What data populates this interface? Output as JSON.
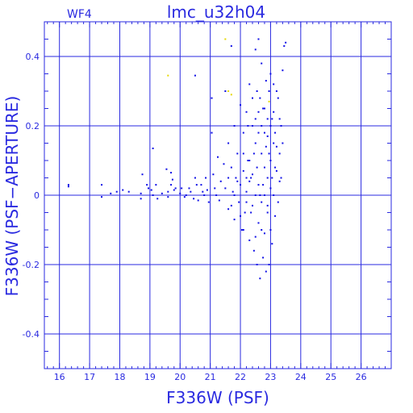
{
  "chart_data": {
    "type": "scatter",
    "title": "lmc_u32h04",
    "tag": "WF4",
    "xlabel": "F336W (PSF)",
    "ylabel": "F336W (PSF−APERTURE)",
    "xlim": [
      15.5,
      27.0
    ],
    "ylim": [
      -0.5,
      0.5
    ],
    "x_ticks": [
      16,
      17,
      18,
      19,
      20,
      21,
      22,
      23,
      24,
      25,
      26
    ],
    "y_ticks": [
      0.4,
      0.2,
      0,
      -0.2,
      -0.4
    ],
    "y_tick_labels": [
      "0.4",
      "0.2",
      "0",
      "-0.2",
      "-0.4"
    ],
    "grid": true,
    "colors": {
      "axes": "#2a2ae0",
      "points": "#1010e6",
      "highlight": "#e6d800"
    },
    "series": [
      {
        "color_key": "points",
        "points": [
          [
            16.3,
            0.03
          ],
          [
            16.3,
            0.025
          ],
          [
            17.4,
            0.03
          ],
          [
            17.4,
            -0.005
          ],
          [
            17.7,
            0.005
          ],
          [
            17.9,
            0.01
          ],
          [
            18.1,
            0.015
          ],
          [
            18.3,
            0.01
          ],
          [
            18.7,
            0.005
          ],
          [
            18.7,
            -0.01
          ],
          [
            18.75,
            0.06
          ],
          [
            18.9,
            0.03
          ],
          [
            18.95,
            0.02
          ],
          [
            19.05,
            0.015
          ],
          [
            19.1,
            0.0
          ],
          [
            19.1,
            0.135
          ],
          [
            19.2,
            0.03
          ],
          [
            19.25,
            -0.01
          ],
          [
            19.4,
            0.005
          ],
          [
            19.55,
            0.075
          ],
          [
            19.6,
            0.01
          ],
          [
            19.6,
            -0.005
          ],
          [
            19.7,
            0.065
          ],
          [
            19.7,
            0.03
          ],
          [
            19.75,
            0.045
          ],
          [
            19.8,
            0.015
          ],
          [
            19.85,
            0.02
          ],
          [
            20.0,
            0.005
          ],
          [
            20.05,
            0.02
          ],
          [
            20.15,
            -0.005
          ],
          [
            20.2,
            0.0
          ],
          [
            20.3,
            0.02
          ],
          [
            20.35,
            0.01
          ],
          [
            20.45,
            -0.01
          ],
          [
            20.5,
            0.345
          ],
          [
            20.5,
            0.05
          ],
          [
            20.55,
            0.03
          ],
          [
            20.6,
            -0.015
          ],
          [
            20.7,
            0.03
          ],
          [
            20.75,
            0.01
          ],
          [
            20.8,
            0.0
          ],
          [
            20.85,
            0.05
          ],
          [
            20.9,
            0.015
          ],
          [
            20.95,
            -0.02
          ],
          [
            21.05,
            0.28
          ],
          [
            21.05,
            0.18
          ],
          [
            21.1,
            0.06
          ],
          [
            21.15,
            0.02
          ],
          [
            21.2,
            0.0
          ],
          [
            21.25,
            0.11
          ],
          [
            21.3,
            -0.015
          ],
          [
            21.35,
            0.04
          ],
          [
            21.45,
            0.09
          ],
          [
            21.5,
            0.3
          ],
          [
            21.5,
            0.02
          ],
          [
            21.6,
            0.15
          ],
          [
            21.6,
            -0.04
          ],
          [
            21.7,
            0.43
          ],
          [
            21.7,
            0.08
          ],
          [
            21.75,
            0.01
          ],
          [
            21.8,
            0.2
          ],
          [
            21.8,
            -0.07
          ],
          [
            21.85,
            0.05
          ],
          [
            21.9,
            0.12
          ],
          [
            21.95,
            -0.02
          ],
          [
            22.0,
            0.26
          ],
          [
            22.0,
            0.03
          ],
          [
            22.05,
            -0.1
          ],
          [
            22.1,
            0.18
          ],
          [
            22.1,
            0.07
          ],
          [
            22.15,
            -0.05
          ],
          [
            22.2,
            0.24
          ],
          [
            22.2,
            0.01
          ],
          [
            22.25,
            0.1
          ],
          [
            22.3,
            -0.13
          ],
          [
            22.3,
            0.32
          ],
          [
            22.35,
            0.05
          ],
          [
            22.4,
            -0.03
          ],
          [
            22.4,
            0.2
          ],
          [
            22.45,
            -0.16
          ],
          [
            22.5,
            0.15
          ],
          [
            22.5,
            0.42
          ],
          [
            22.55,
            -0.2
          ],
          [
            22.55,
            0.08
          ],
          [
            22.6,
            0.45
          ],
          [
            22.6,
            -0.08
          ],
          [
            22.65,
            0.28
          ],
          [
            22.65,
            -0.24
          ],
          [
            22.7,
            0.12
          ],
          [
            22.7,
            0.38
          ],
          [
            22.75,
            -0.18
          ],
          [
            22.75,
            0.03
          ],
          [
            22.8,
            0.25
          ],
          [
            22.8,
            -0.11
          ],
          [
            22.85,
            0.33
          ],
          [
            22.85,
            -0.22
          ],
          [
            22.9,
            0.17
          ],
          [
            22.9,
            -0.05
          ],
          [
            22.95,
            0.3
          ],
          [
            22.95,
            -0.2
          ],
          [
            23.0,
            0.1
          ],
          [
            23.0,
            0.35
          ],
          [
            23.05,
            -0.14
          ],
          [
            23.05,
            0.22
          ],
          [
            23.1,
            0.0
          ],
          [
            23.1,
            0.32
          ],
          [
            23.15,
            -0.06
          ],
          [
            23.15,
            0.18
          ],
          [
            23.2,
            0.3
          ],
          [
            23.2,
            0.07
          ],
          [
            23.25,
            0.28
          ],
          [
            23.25,
            -0.02
          ],
          [
            23.3,
            0.22
          ],
          [
            23.3,
            0.12
          ],
          [
            23.35,
            0.2
          ],
          [
            23.35,
            0.05
          ],
          [
            23.4,
            0.15
          ],
          [
            23.45,
            0.43
          ],
          [
            23.5,
            0.44
          ],
          [
            23.4,
            0.36
          ],
          [
            22.1,
            0.12
          ],
          [
            22.2,
            0.05
          ],
          [
            22.25,
            0.2
          ],
          [
            22.3,
            0.1
          ],
          [
            22.35,
            -0.05
          ],
          [
            22.45,
            0.12
          ],
          [
            22.5,
            -0.12
          ],
          [
            22.55,
            0.3
          ],
          [
            22.6,
            0.18
          ],
          [
            22.65,
            0.0
          ],
          [
            22.7,
            -0.1
          ],
          [
            22.75,
            0.25
          ],
          [
            22.8,
            0.08
          ],
          [
            22.85,
            0.14
          ],
          [
            22.9,
            0.05
          ],
          [
            22.95,
            0.12
          ],
          [
            23.0,
            -0.1
          ],
          [
            23.05,
            0.05
          ],
          [
            23.1,
            0.15
          ],
          [
            23.15,
            0.08
          ],
          [
            21.6,
            0.05
          ],
          [
            21.7,
            -0.03
          ],
          [
            21.8,
            0.0
          ],
          [
            21.9,
            0.04
          ],
          [
            22.0,
            -0.06
          ],
          [
            22.1,
            -0.1
          ],
          [
            22.2,
            -0.02
          ],
          [
            22.3,
            0.04
          ],
          [
            22.4,
            0.06
          ],
          [
            22.5,
            0.0
          ],
          [
            22.6,
            0.03
          ],
          [
            22.7,
            -0.02
          ],
          [
            22.8,
            0.0
          ],
          [
            22.9,
            -0.03
          ],
          [
            23.0,
            0.02
          ],
          [
            22.4,
            0.28
          ],
          [
            22.5,
            0.22
          ],
          [
            22.6,
            0.24
          ],
          [
            22.7,
            0.2
          ],
          [
            22.8,
            0.18
          ],
          [
            22.9,
            0.22
          ],
          [
            23.0,
            0.2
          ],
          [
            23.1,
            0.24
          ],
          [
            23.2,
            0.14
          ],
          [
            23.3,
            0.04
          ]
        ]
      },
      {
        "color_key": "highlight",
        "points": [
          [
            19.6,
            0.345
          ],
          [
            21.5,
            0.45
          ],
          [
            21.6,
            0.3
          ],
          [
            21.7,
            0.29
          ],
          [
            22.95,
            0.27
          ]
        ]
      }
    ]
  }
}
